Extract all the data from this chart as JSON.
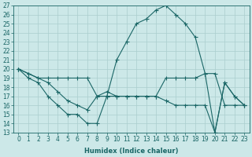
{
  "xlabel": "Humidex (Indice chaleur)",
  "ylabel": "",
  "xlim": [
    -0.5,
    23.5
  ],
  "ylim": [
    13,
    27
  ],
  "yticks": [
    13,
    14,
    15,
    16,
    17,
    18,
    19,
    20,
    21,
    22,
    23,
    24,
    25,
    26,
    27
  ],
  "xticks": [
    0,
    1,
    2,
    3,
    4,
    5,
    6,
    7,
    8,
    9,
    10,
    11,
    12,
    13,
    14,
    15,
    16,
    17,
    18,
    19,
    20,
    21,
    22,
    23
  ],
  "bg_color": "#cce8e8",
  "line_color": "#1a6666",
  "grid_color": "#aacece",
  "lines": [
    {
      "x": [
        0,
        1,
        2,
        3,
        4,
        5,
        6,
        7,
        8,
        9,
        10,
        11,
        12,
        13,
        14,
        15,
        16,
        17,
        18,
        19,
        20,
        21,
        22,
        23
      ],
      "y": [
        20,
        19,
        18.5,
        17,
        16,
        15,
        15,
        14,
        14,
        17,
        21,
        23,
        25,
        25.5,
        26.5,
        27,
        26,
        25,
        23.5,
        19.5,
        13,
        18.5,
        17,
        16
      ]
    },
    {
      "x": [
        0,
        1,
        2,
        3,
        4,
        5,
        6,
        7,
        8,
        9,
        10,
        11,
        12,
        13,
        14,
        15,
        16,
        17,
        18,
        19,
        20,
        21,
        22,
        23
      ],
      "y": [
        20,
        19.5,
        19,
        19,
        19,
        19,
        19,
        19,
        17,
        17,
        17,
        17,
        17,
        17,
        17,
        19,
        19,
        19,
        19,
        19.5,
        19.5,
        16,
        16,
        16
      ]
    },
    {
      "x": [
        0,
        1,
        2,
        3,
        4,
        5,
        6,
        7,
        8,
        9,
        10,
        11,
        12,
        13,
        14,
        15,
        16,
        17,
        18,
        19,
        20,
        21,
        22,
        23
      ],
      "y": [
        20,
        19.5,
        19,
        18.5,
        17.5,
        16.5,
        16,
        15.5,
        17,
        17.5,
        17,
        17,
        17,
        17,
        17,
        16.5,
        16,
        16,
        16,
        16,
        13,
        18.5,
        17,
        16
      ]
    }
  ],
  "tick_fontsize": 5.5,
  "xlabel_fontsize": 6,
  "marker_size": 2.0
}
